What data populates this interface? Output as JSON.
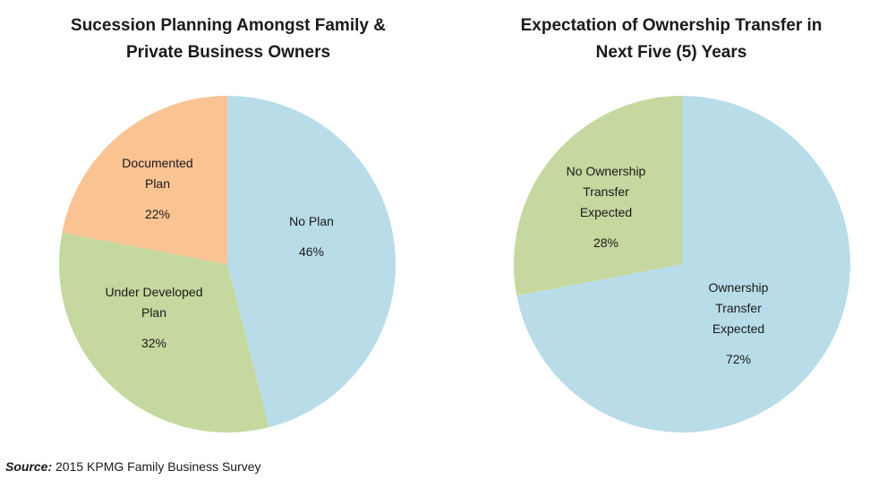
{
  "chart_data": [
    {
      "type": "pie",
      "title_line1": "Sucession Planning Amongst Family &",
      "title_line2": "Private Business Owners",
      "slices": [
        {
          "label_lines": [
            "No Plan"
          ],
          "value_label": "46%",
          "value": 46,
          "color": "#b9dce9"
        },
        {
          "label_lines": [
            "Under Developed",
            "Plan"
          ],
          "value_label": "32%",
          "value": 32,
          "color": "#c5d89f"
        },
        {
          "label_lines": [
            "Documented",
            "Plan"
          ],
          "value_label": "22%",
          "value": 22,
          "color": "#fac392"
        }
      ]
    },
    {
      "type": "pie",
      "title_line1": "Expectation of Ownership Transfer in",
      "title_line2": "Next Five (5) Years",
      "slices": [
        {
          "label_lines": [
            "Ownership",
            "Transfer",
            "Expected"
          ],
          "value_label": "72%",
          "value": 72,
          "color": "#b9dce9"
        },
        {
          "label_lines": [
            "No Ownership",
            "Transfer",
            "Expected"
          ],
          "value_label": "28%",
          "value": 28,
          "color": "#c5d89f"
        }
      ]
    }
  ],
  "source": {
    "prefix": "Source:",
    "text": " 2015 KPMG Family Business Survey"
  }
}
